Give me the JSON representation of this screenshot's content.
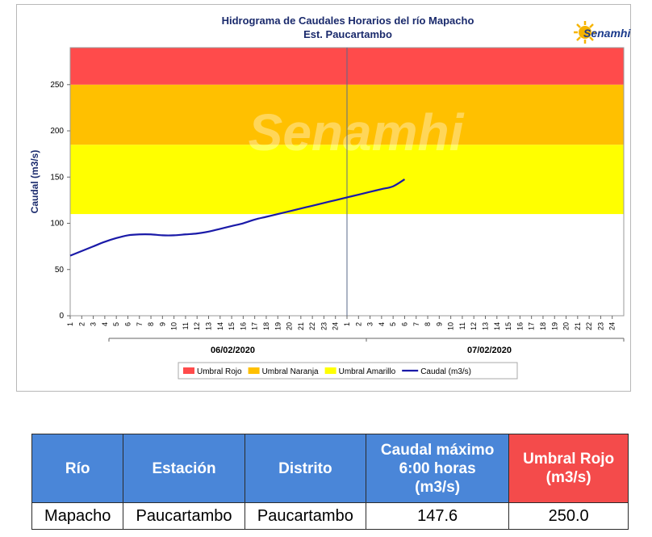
{
  "chart_data": {
    "type": "line",
    "title": "Hidrograma de Caudales Horarios del río Mapacho",
    "subtitle": "Est. Paucartambo",
    "ylabel": "Caudal (m3/s)",
    "ylim": [
      0,
      290
    ],
    "yticks": [
      "0",
      "50",
      "100",
      "150",
      "200",
      "250"
    ],
    "xticks": [
      "1",
      "2",
      "3",
      "4",
      "5",
      "6",
      "7",
      "8",
      "9",
      "10",
      "11",
      "12",
      "13",
      "14",
      "15",
      "16",
      "17",
      "18",
      "19",
      "20",
      "21",
      "22",
      "23",
      "24",
      "1",
      "2",
      "3",
      "4",
      "5",
      "6",
      "7",
      "8",
      "9",
      "10",
      "11",
      "12",
      "13",
      "14",
      "15",
      "16",
      "17",
      "18",
      "19",
      "20",
      "21",
      "22",
      "23",
      "24"
    ],
    "date_groups": [
      "06/02/2020",
      "07/02/2020"
    ],
    "thresholds": [
      {
        "name": "Umbral Amarillo",
        "from": 110,
        "to": 185,
        "color": "#ffff00"
      },
      {
        "name": "Umbral Naranja",
        "from": 185,
        "to": 250,
        "color": "#ffc000"
      },
      {
        "name": "Umbral Rojo",
        "from": 250,
        "to": 290,
        "color": "#ff4b4b"
      }
    ],
    "series": [
      {
        "name": "Caudal (m3/s)",
        "color": "#1a1aa8",
        "x": [
          1,
          2,
          3,
          4,
          5,
          6,
          7,
          8,
          9,
          10,
          11,
          12,
          13,
          14,
          15,
          16,
          17,
          18,
          19,
          20,
          21,
          22,
          23,
          24,
          25,
          26,
          27,
          28,
          29,
          30
        ],
        "values": [
          65,
          70,
          75,
          80,
          84,
          87,
          88,
          88,
          87,
          87,
          88,
          89,
          91,
          94,
          97,
          100,
          104,
          107,
          110,
          113,
          116,
          119,
          122,
          125,
          128,
          131,
          134,
          137,
          140,
          147.6
        ]
      }
    ],
    "legend": [
      "Umbral Rojo",
      "Umbral Naranja",
      "Umbral Amarillo",
      "Caudal (m3/s)"
    ],
    "legend_position": "bottom",
    "watermark": "Senamhi"
  },
  "logo": {
    "text": "Senamhi"
  },
  "table": {
    "headers": [
      "Río",
      "Estación",
      "Distrito",
      "Caudal máximo 6:00 horas (m3/s)",
      "Umbral Rojo (m3/s)"
    ],
    "header_lines": [
      [
        "Río"
      ],
      [
        "Estación"
      ],
      [
        "Distrito"
      ],
      [
        "Caudal máximo",
        "6:00 horas",
        "(m3/s)"
      ],
      [
        "Umbral Rojo",
        "(m3/s)"
      ]
    ],
    "row": [
      "Mapacho",
      "Paucartambo",
      "Paucartambo",
      "147.6",
      "250.0"
    ]
  }
}
